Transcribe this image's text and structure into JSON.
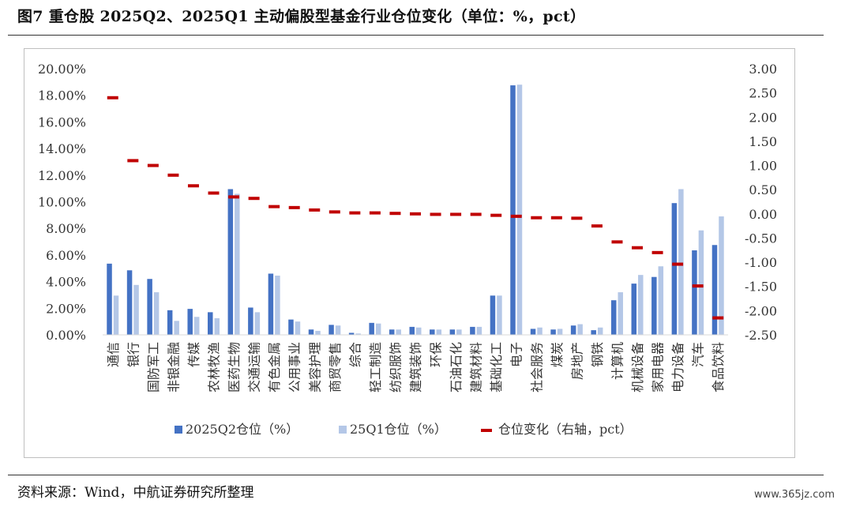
{
  "figure": {
    "title": "图7  重仓股 2025Q2、2025Q1 主动偏股型基金行业仓位变化（单位：%，pct）",
    "source": "资料来源：Wind，中航证券研究所整理",
    "watermark": "www.365jz.com"
  },
  "colors": {
    "q2": "#4472c4",
    "q1": "#b4c7e7",
    "change": "#c00000",
    "axis": "#d9d9d9"
  },
  "chart_data": {
    "type": "bar",
    "title": "",
    "xlabel": "",
    "ylabel": "",
    "ylim": [
      0,
      20
    ],
    "y2lim": [
      -2.5,
      3
    ],
    "y_ticks": [
      "0.00%",
      "2.00%",
      "4.00%",
      "6.00%",
      "8.00%",
      "10.00%",
      "12.00%",
      "14.00%",
      "16.00%",
      "18.00%",
      "20.00%"
    ],
    "y2_ticks": [
      "-2.50",
      "-2.00",
      "-1.50",
      "-1.00",
      "-0.50",
      "0.00",
      "0.50",
      "1.00",
      "1.50",
      "2.00",
      "2.50",
      "3.00"
    ],
    "grid": false,
    "legend_position": "bottom",
    "categories": [
      "通信",
      "银行",
      "国防军工",
      "非银金融",
      "传媒",
      "农林牧渔",
      "医药生物",
      "交通运输",
      "有色金属",
      "公用事业",
      "美容护理",
      "商贸零售",
      "综合",
      "轻工制造",
      "纺织服饰",
      "建筑装饰",
      "环保",
      "石油石化",
      "建筑材料",
      "基础化工",
      "电子",
      "社会服务",
      "煤炭",
      "房地产",
      "钢铁",
      "计算机",
      "机械设备",
      "家用电器",
      "电力设备",
      "汽车",
      "食品饮料"
    ],
    "series": [
      {
        "name": "2025Q2仓位（%）",
        "axis": "left",
        "kind": "bar",
        "values": [
          5.35,
          4.85,
          4.2,
          1.85,
          1.95,
          1.7,
          10.95,
          2.05,
          4.6,
          1.15,
          0.4,
          0.75,
          0.15,
          0.9,
          0.4,
          0.6,
          0.4,
          0.4,
          0.6,
          2.95,
          18.75,
          0.45,
          0.4,
          0.7,
          0.35,
          2.6,
          3.85,
          4.35,
          9.9,
          6.35,
          6.75
        ]
      },
      {
        "name": "25Q1仓位（%）",
        "axis": "left",
        "kind": "bar",
        "values": [
          2.95,
          3.75,
          3.2,
          1.05,
          1.35,
          1.25,
          10.6,
          1.7,
          4.45,
          1.0,
          0.3,
          0.7,
          0.1,
          0.85,
          0.4,
          0.55,
          0.4,
          0.4,
          0.6,
          2.95,
          18.8,
          0.55,
          0.45,
          0.8,
          0.55,
          3.2,
          4.5,
          5.15,
          10.95,
          7.85,
          8.9
        ]
      },
      {
        "name": "仓位变化（右轴，pct）",
        "axis": "right",
        "kind": "marker",
        "values": [
          2.4,
          1.1,
          1.0,
          0.8,
          0.58,
          0.43,
          0.35,
          0.32,
          0.15,
          0.13,
          0.08,
          0.04,
          0.02,
          0.02,
          0.01,
          0.0,
          -0.01,
          -0.01,
          -0.01,
          -0.03,
          -0.05,
          -0.08,
          -0.08,
          -0.09,
          -0.25,
          -0.58,
          -0.7,
          -0.8,
          -1.04,
          -1.49,
          -2.15
        ]
      }
    ]
  }
}
